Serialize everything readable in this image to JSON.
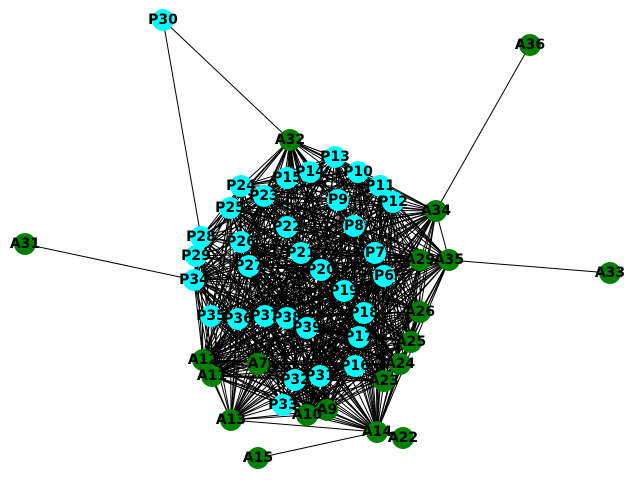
{
  "graph": {
    "colors": {
      "p_node": "#00ffff",
      "a_node": "#008000",
      "edge": "#000000",
      "label": "#000000"
    },
    "nodes": [
      {
        "id": "P30",
        "group": "P"
      },
      {
        "id": "A36",
        "group": "A"
      },
      {
        "id": "A32",
        "group": "A"
      },
      {
        "id": "P13",
        "group": "P"
      },
      {
        "id": "P14",
        "group": "P"
      },
      {
        "id": "P10",
        "group": "P"
      },
      {
        "id": "P15",
        "group": "P"
      },
      {
        "id": "P11",
        "group": "P"
      },
      {
        "id": "P24",
        "group": "P"
      },
      {
        "id": "P23",
        "group": "P"
      },
      {
        "id": "P9",
        "group": "P"
      },
      {
        "id": "P12",
        "group": "P"
      },
      {
        "id": "A34",
        "group": "A"
      },
      {
        "id": "P25",
        "group": "P"
      },
      {
        "id": "P22",
        "group": "P"
      },
      {
        "id": "P8",
        "group": "P"
      },
      {
        "id": "P28",
        "group": "P"
      },
      {
        "id": "P26",
        "group": "P"
      },
      {
        "id": "A31",
        "group": "A"
      },
      {
        "id": "P21",
        "group": "P"
      },
      {
        "id": "P7",
        "group": "P"
      },
      {
        "id": "A29",
        "group": "A"
      },
      {
        "id": "A35",
        "group": "A"
      },
      {
        "id": "P29",
        "group": "P"
      },
      {
        "id": "P27",
        "group": "P"
      },
      {
        "id": "P20",
        "group": "P"
      },
      {
        "id": "P6",
        "group": "P"
      },
      {
        "id": "A33",
        "group": "A"
      },
      {
        "id": "P34",
        "group": "P"
      },
      {
        "id": "P19",
        "group": "P"
      },
      {
        "id": "A26",
        "group": "A"
      },
      {
        "id": "P35",
        "group": "P"
      },
      {
        "id": "P36",
        "group": "P"
      },
      {
        "id": "P37",
        "group": "P"
      },
      {
        "id": "P38",
        "group": "P"
      },
      {
        "id": "P18",
        "group": "P"
      },
      {
        "id": "P39",
        "group": "P"
      },
      {
        "id": "P17",
        "group": "P"
      },
      {
        "id": "A25",
        "group": "A"
      },
      {
        "id": "A12",
        "group": "A"
      },
      {
        "id": "A7",
        "group": "A"
      },
      {
        "id": "P16",
        "group": "P"
      },
      {
        "id": "A24",
        "group": "A"
      },
      {
        "id": "A11",
        "group": "A"
      },
      {
        "id": "P31",
        "group": "P"
      },
      {
        "id": "P32",
        "group": "P"
      },
      {
        "id": "A23",
        "group": "A"
      },
      {
        "id": "P33",
        "group": "P"
      },
      {
        "id": "A9",
        "group": "A"
      },
      {
        "id": "A10",
        "group": "A"
      },
      {
        "id": "A13",
        "group": "A"
      },
      {
        "id": "A14",
        "group": "A"
      },
      {
        "id": "A22",
        "group": "A"
      },
      {
        "id": "A15",
        "group": "A"
      }
    ]
  }
}
